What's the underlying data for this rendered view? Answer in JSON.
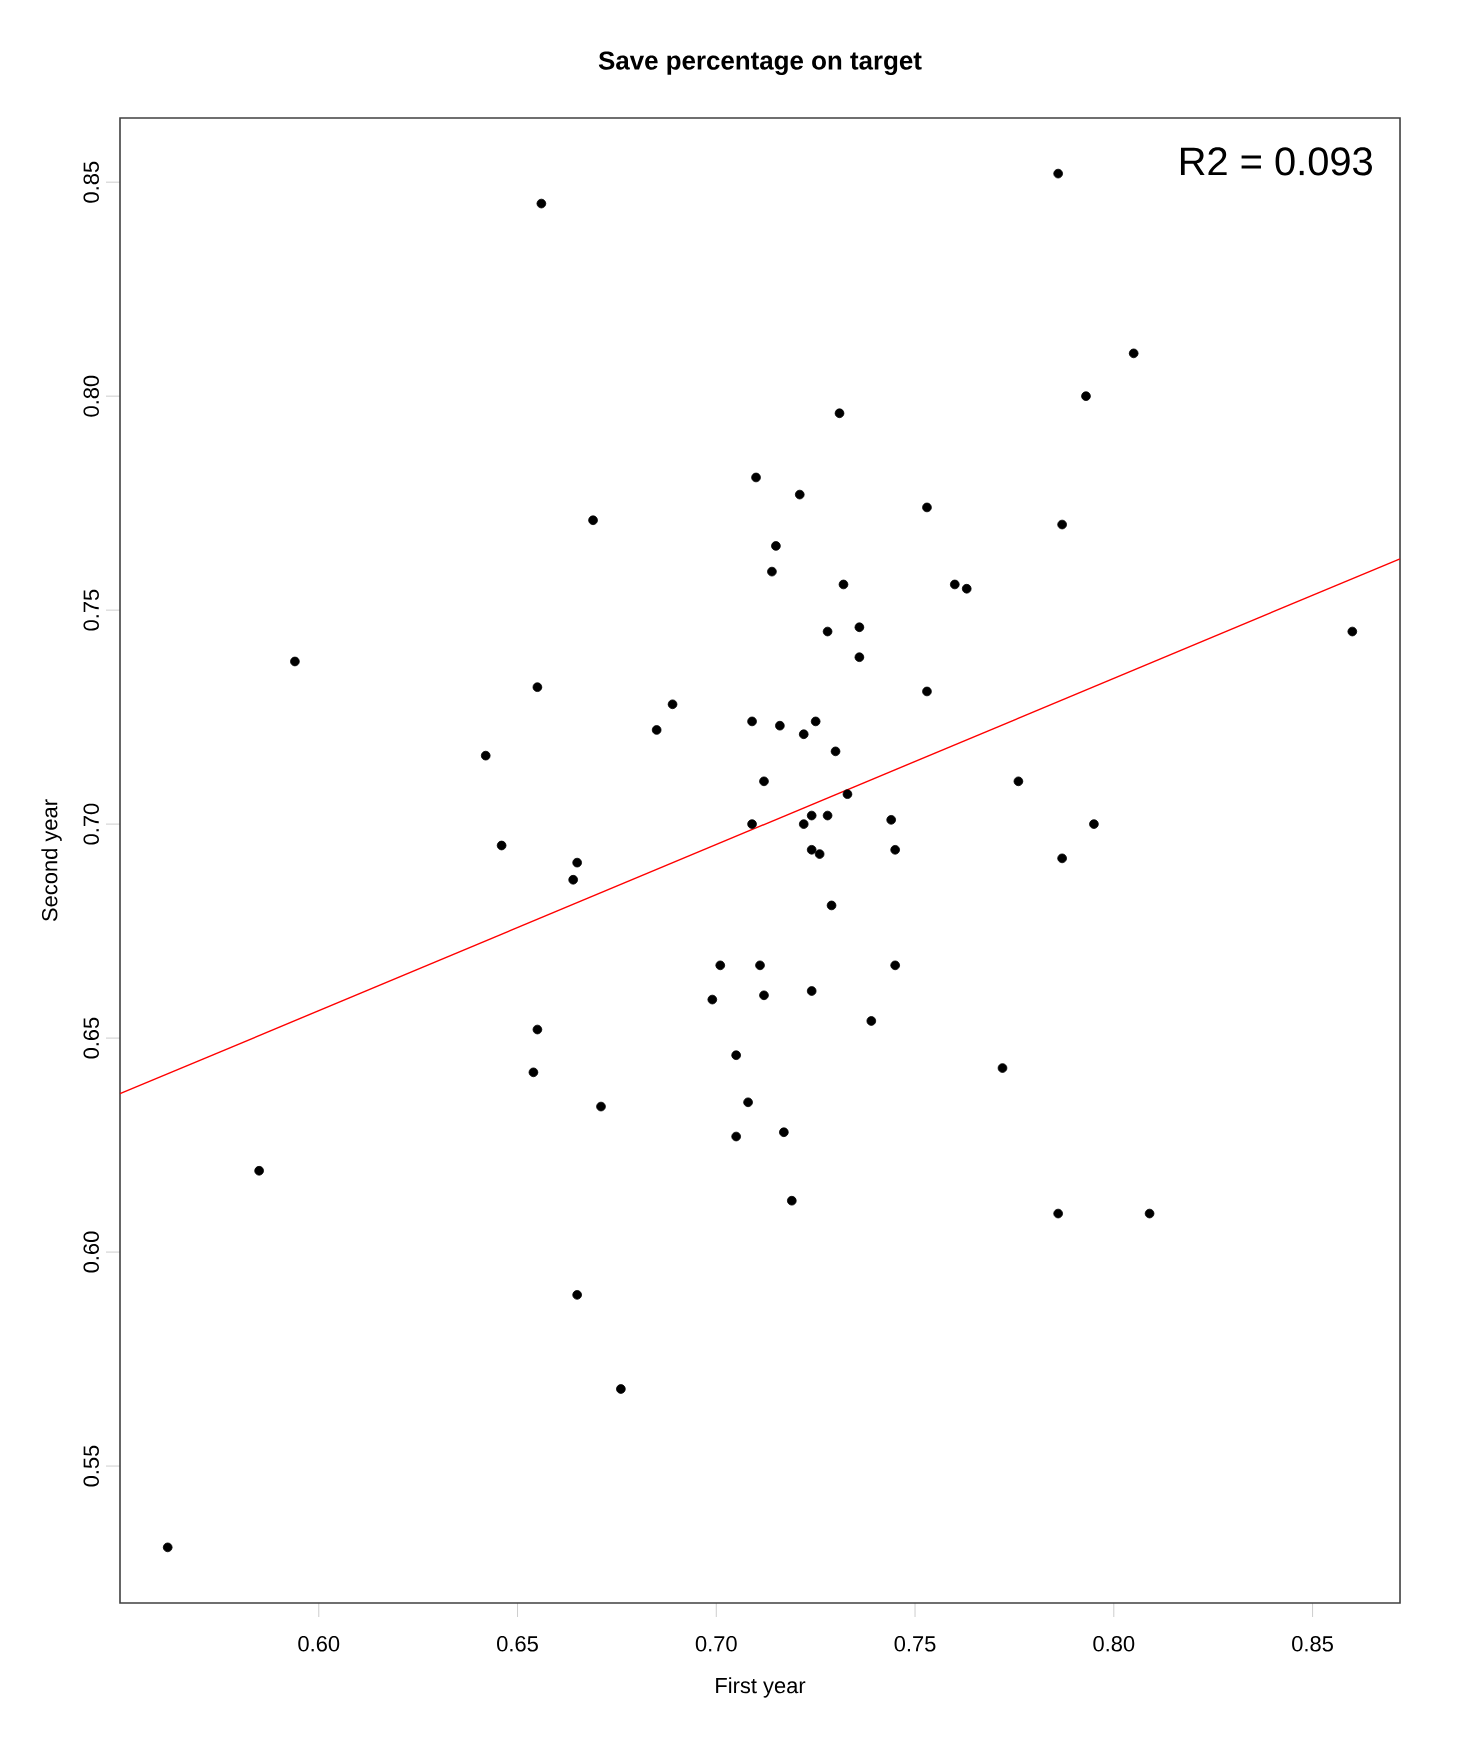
{
  "chart_data": {
    "type": "scatter",
    "title": "Save percentage on target",
    "xlabel": "First year",
    "ylabel": "Second year",
    "xlim": [
      0.55,
      0.872
    ],
    "ylim": [
      0.518,
      0.865
    ],
    "xticks": [
      {
        "value": 0.6,
        "label": "0.60"
      },
      {
        "value": 0.65,
        "label": "0.65"
      },
      {
        "value": 0.7,
        "label": "0.70"
      },
      {
        "value": 0.75,
        "label": "0.75"
      },
      {
        "value": 0.8,
        "label": "0.80"
      },
      {
        "value": 0.85,
        "label": "0.85"
      }
    ],
    "yticks": [
      {
        "value": 0.55,
        "label": "0.55"
      },
      {
        "value": 0.6,
        "label": "0.60"
      },
      {
        "value": 0.65,
        "label": "0.65"
      },
      {
        "value": 0.7,
        "label": "0.70"
      },
      {
        "value": 0.75,
        "label": "0.75"
      },
      {
        "value": 0.8,
        "label": "0.80"
      },
      {
        "value": 0.85,
        "label": "0.85"
      }
    ],
    "annotations": [
      "R2 = 0.093"
    ],
    "series": [
      {
        "color": "#000000",
        "marker": "circle",
        "x": [
          0.562,
          0.585,
          0.594,
          0.642,
          0.646,
          0.655,
          0.656,
          0.655,
          0.654,
          0.664,
          0.665,
          0.669,
          0.671,
          0.665,
          0.676,
          0.685,
          0.689,
          0.699,
          0.701,
          0.705,
          0.705,
          0.708,
          0.709,
          0.709,
          0.71,
          0.711,
          0.712,
          0.712,
          0.714,
          0.715,
          0.716,
          0.717,
          0.719,
          0.721,
          0.722,
          0.722,
          0.724,
          0.724,
          0.724,
          0.725,
          0.726,
          0.728,
          0.728,
          0.729,
          0.73,
          0.731,
          0.732,
          0.733,
          0.736,
          0.736,
          0.739,
          0.744,
          0.745,
          0.745,
          0.753,
          0.753,
          0.76,
          0.763,
          0.772,
          0.776,
          0.786,
          0.787,
          0.787,
          0.786,
          0.793,
          0.795,
          0.805,
          0.809,
          0.86
        ],
        "values": [
          0.531,
          0.619,
          0.738,
          0.716,
          0.695,
          0.732,
          0.845,
          0.652,
          0.642,
          0.687,
          0.691,
          0.771,
          0.634,
          0.59,
          0.568,
          0.722,
          0.728,
          0.659,
          0.667,
          0.646,
          0.627,
          0.635,
          0.7,
          0.724,
          0.781,
          0.667,
          0.66,
          0.71,
          0.759,
          0.765,
          0.723,
          0.628,
          0.612,
          0.777,
          0.721,
          0.7,
          0.702,
          0.694,
          0.661,
          0.724,
          0.693,
          0.745,
          0.702,
          0.681,
          0.717,
          0.796,
          0.756,
          0.707,
          0.746,
          0.739,
          0.654,
          0.701,
          0.694,
          0.667,
          0.774,
          0.731,
          0.756,
          0.755,
          0.643,
          0.71,
          0.852,
          0.77,
          0.692,
          0.609,
          0.8,
          0.7,
          0.81,
          0.609,
          0.745
        ]
      },
      {
        "type": "line",
        "marker": "none",
        "color": "#ff0000",
        "x": [
          0.55,
          0.872
        ],
        "values": [
          0.637,
          0.762
        ]
      }
    ]
  }
}
